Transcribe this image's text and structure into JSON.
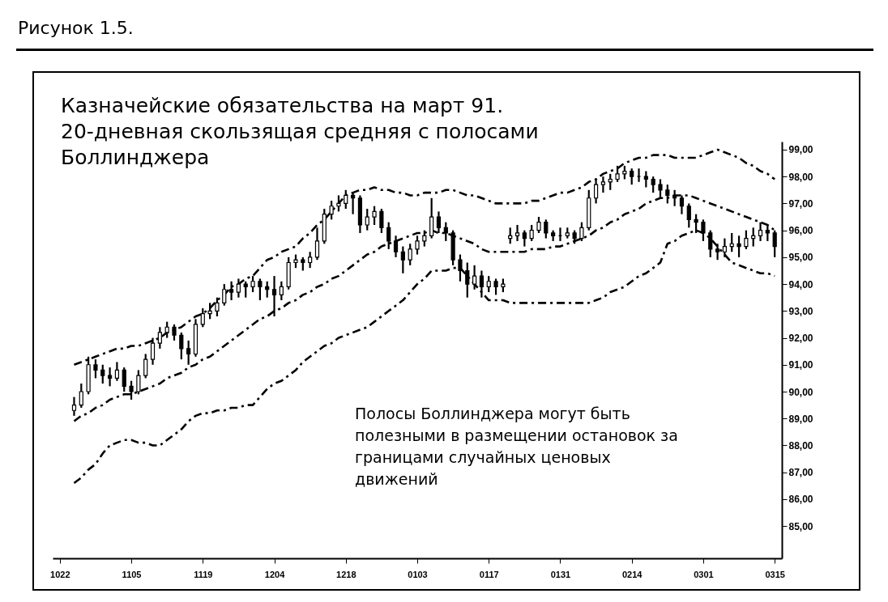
{
  "chart_data": {
    "type": "candlestick",
    "title": "Казначейские обязательства на март 91.\n20-дневная скользящая средняя с полосами\nБоллинджера",
    "annotations": [
      "Рисунок 1.5.",
      "Полосы Боллинджера могут быть\nполезными в размещении остановок за\nграницами случайных ценовых\nдвижений"
    ],
    "color": "#000000",
    "categories": [
      "1022",
      null,
      null,
      null,
      null,
      null,
      null,
      null,
      null,
      null,
      "1105",
      null,
      null,
      null,
      null,
      null,
      null,
      null,
      null,
      null,
      "1119",
      null,
      null,
      null,
      null,
      null,
      null,
      null,
      null,
      null,
      "1204",
      null,
      null,
      null,
      null,
      null,
      null,
      null,
      null,
      null,
      "1218",
      null,
      null,
      null,
      null,
      null,
      null,
      null,
      null,
      null,
      "0103",
      null,
      null,
      null,
      null,
      null,
      null,
      null,
      null,
      null,
      "0117",
      null,
      null,
      null,
      null,
      null,
      null,
      null,
      null,
      null,
      "0131",
      null,
      null,
      null,
      null,
      null,
      null,
      null,
      null,
      null,
      "0214",
      null,
      null,
      null,
      null,
      null,
      null,
      null,
      null,
      null,
      "0301",
      null,
      null,
      null,
      null,
      null,
      null,
      null,
      null,
      null,
      "0315"
    ],
    "ohlc": [
      null,
      null,
      [
        89.3,
        89.8,
        89.1,
        89.5
      ],
      [
        89.5,
        90.3,
        89.4,
        90.0
      ],
      [
        90.0,
        91.3,
        89.9,
        91.0
      ],
      [
        91.0,
        91.2,
        90.5,
        90.8
      ],
      [
        90.8,
        91.0,
        90.3,
        90.6
      ],
      [
        90.6,
        90.9,
        90.2,
        90.5
      ],
      [
        90.5,
        91.1,
        90.4,
        90.8
      ],
      [
        90.8,
        90.9,
        90.0,
        90.2
      ],
      [
        90.2,
        90.4,
        89.7,
        90.0
      ],
      [
        90.0,
        90.8,
        89.9,
        90.6
      ],
      [
        90.6,
        91.4,
        90.5,
        91.2
      ],
      [
        91.2,
        92.0,
        91.0,
        91.8
      ],
      [
        91.8,
        92.4,
        91.6,
        92.2
      ],
      [
        92.2,
        92.6,
        92.0,
        92.4
      ],
      [
        92.4,
        92.5,
        91.9,
        92.1
      ],
      [
        92.1,
        92.2,
        91.2,
        91.6
      ],
      [
        91.6,
        91.9,
        91.0,
        91.4
      ],
      [
        91.4,
        92.7,
        91.3,
        92.5
      ],
      [
        92.5,
        93.1,
        92.4,
        92.9
      ],
      [
        92.9,
        93.3,
        92.7,
        93.0
      ],
      [
        93.0,
        93.5,
        92.8,
        93.3
      ],
      [
        93.3,
        94.0,
        93.2,
        93.8
      ],
      [
        93.8,
        94.1,
        93.4,
        93.7
      ],
      [
        93.7,
        94.2,
        93.5,
        94.0
      ],
      [
        94.0,
        94.1,
        93.5,
        93.9
      ],
      [
        93.9,
        94.3,
        93.7,
        94.1
      ],
      [
        94.1,
        94.2,
        93.4,
        93.9
      ],
      [
        93.9,
        94.1,
        93.5,
        93.8
      ],
      [
        93.8,
        94.3,
        92.8,
        93.6
      ],
      [
        93.6,
        94.1,
        93.4,
        93.9
      ],
      [
        93.9,
        95.0,
        93.8,
        94.8
      ],
      [
        94.8,
        95.1,
        94.6,
        94.9
      ],
      [
        94.9,
        95.0,
        94.5,
        94.8
      ],
      [
        94.8,
        95.2,
        94.6,
        95.0
      ],
      [
        95.0,
        96.1,
        94.9,
        95.6
      ],
      [
        95.6,
        96.8,
        95.5,
        96.6
      ],
      [
        96.6,
        97.1,
        96.4,
        96.9
      ],
      [
        96.9,
        97.3,
        96.7,
        97.0
      ],
      [
        97.0,
        97.5,
        96.8,
        97.3
      ],
      [
        97.3,
        97.4,
        96.6,
        97.2
      ],
      [
        97.2,
        97.3,
        95.9,
        96.2
      ],
      [
        96.2,
        96.8,
        96.0,
        96.5
      ],
      [
        96.5,
        96.9,
        96.2,
        96.7
      ],
      [
        96.7,
        96.8,
        95.9,
        96.1
      ],
      [
        96.1,
        96.3,
        95.3,
        95.6
      ],
      [
        95.6,
        95.8,
        95.0,
        95.2
      ],
      [
        95.2,
        95.4,
        94.4,
        94.9
      ],
      [
        94.9,
        95.5,
        94.7,
        95.3
      ],
      [
        95.3,
        95.8,
        95.1,
        95.6
      ],
      [
        95.6,
        96.0,
        95.4,
        95.8
      ],
      [
        95.8,
        97.2,
        95.7,
        96.5
      ],
      [
        96.5,
        96.7,
        95.9,
        96.1
      ],
      [
        96.1,
        96.3,
        95.6,
        95.9
      ],
      [
        95.9,
        96.0,
        94.7,
        94.9
      ],
      [
        94.9,
        95.1,
        94.1,
        94.5
      ],
      [
        94.5,
        94.8,
        93.5,
        94.0
      ],
      [
        94.0,
        94.7,
        93.8,
        94.3
      ],
      [
        94.3,
        94.5,
        93.5,
        93.9
      ],
      [
        93.9,
        94.3,
        93.7,
        94.1
      ],
      [
        94.1,
        94.2,
        93.6,
        93.9
      ],
      [
        93.9,
        94.2,
        93.7,
        94.0
      ],
      [
        95.7,
        96.1,
        95.5,
        95.8
      ],
      [
        95.8,
        96.2,
        95.6,
        95.9
      ],
      [
        95.9,
        96.0,
        95.4,
        95.7
      ],
      [
        95.7,
        96.2,
        95.6,
        96.0
      ],
      [
        96.0,
        96.5,
        95.9,
        96.3
      ],
      [
        96.3,
        96.4,
        95.7,
        95.9
      ],
      [
        95.9,
        96.0,
        95.6,
        95.8
      ],
      [
        95.8,
        96.1,
        95.6,
        95.8
      ],
      [
        95.8,
        96.1,
        95.7,
        95.9
      ],
      [
        95.9,
        96.0,
        95.5,
        95.7
      ],
      [
        95.7,
        96.3,
        95.6,
        96.1
      ],
      [
        96.1,
        97.5,
        96.0,
        97.2
      ],
      [
        97.2,
        97.9,
        97.0,
        97.7
      ],
      [
        97.7,
        98.0,
        97.4,
        97.8
      ],
      [
        97.8,
        98.1,
        97.5,
        97.9
      ],
      [
        97.9,
        98.4,
        97.8,
        98.1
      ],
      [
        98.1,
        98.4,
        97.9,
        98.2
      ],
      [
        98.2,
        98.3,
        97.7,
        98.0
      ],
      [
        98.0,
        98.3,
        97.8,
        98.0
      ],
      [
        98.0,
        98.2,
        97.6,
        97.9
      ],
      [
        97.9,
        98.0,
        97.4,
        97.7
      ],
      [
        97.7,
        97.9,
        97.2,
        97.5
      ],
      [
        97.5,
        97.7,
        97.0,
        97.3
      ],
      [
        97.3,
        97.5,
        96.9,
        97.2
      ],
      [
        97.2,
        97.3,
        96.6,
        96.9
      ],
      [
        96.9,
        97.0,
        96.1,
        96.4
      ],
      [
        96.4,
        96.6,
        95.9,
        96.3
      ],
      [
        96.3,
        96.4,
        95.6,
        95.9
      ],
      [
        95.9,
        96.0,
        95.0,
        95.3
      ],
      [
        95.3,
        95.5,
        94.9,
        95.2
      ],
      [
        95.2,
        95.7,
        95.0,
        95.4
      ],
      [
        95.4,
        95.9,
        95.2,
        95.5
      ],
      [
        95.5,
        95.8,
        95.0,
        95.4
      ],
      [
        95.4,
        96.0,
        95.3,
        95.7
      ],
      [
        95.7,
        96.1,
        95.4,
        95.8
      ],
      [
        95.8,
        96.3,
        95.6,
        96.0
      ],
      [
        96.0,
        96.2,
        95.6,
        95.9
      ],
      [
        95.9,
        96.0,
        95.0,
        95.4
      ]
    ],
    "series": [
      {
        "type": "line",
        "color": "#000000",
        "line_style": "dashed",
        "values": [
          null,
          null,
          91.0,
          91.1,
          91.2,
          91.3,
          91.4,
          91.5,
          91.6,
          91.6,
          91.7,
          91.7,
          91.8,
          91.9,
          92.0,
          92.2,
          92.3,
          92.4,
          92.6,
          92.8,
          92.9,
          93.1,
          93.4,
          93.6,
          93.9,
          94.0,
          94.2,
          94.3,
          94.6,
          94.9,
          95.0,
          95.2,
          95.3,
          95.4,
          95.7,
          95.9,
          96.2,
          96.4,
          96.7,
          97.0,
          97.3,
          97.4,
          97.5,
          97.5,
          97.6,
          97.5,
          97.5,
          97.4,
          97.4,
          97.3,
          97.3,
          97.4,
          97.4,
          97.4,
          97.5,
          97.5,
          97.4,
          97.3,
          97.3,
          97.2,
          97.1,
          97.0,
          97.0,
          97.0,
          97.0,
          97.0,
          97.1,
          97.1,
          97.2,
          97.3,
          97.4,
          97.4,
          97.5,
          97.6,
          97.8,
          97.9,
          98.1,
          98.2,
          98.3,
          98.5,
          98.6,
          98.7,
          98.7,
          98.8,
          98.8,
          98.8,
          98.7,
          98.7,
          98.7,
          98.7,
          98.8,
          98.9,
          99.0,
          98.9,
          98.8,
          98.7,
          98.5,
          98.4,
          98.2,
          98.1,
          97.9
        ]
      },
      {
        "type": "line",
        "color": "#000000",
        "line_style": "dashed",
        "values": [
          null,
          null,
          88.9,
          89.1,
          89.2,
          89.4,
          89.5,
          89.7,
          89.8,
          89.9,
          89.9,
          90.0,
          90.1,
          90.2,
          90.3,
          90.5,
          90.6,
          90.7,
          90.9,
          91.0,
          91.2,
          91.3,
          91.5,
          91.7,
          91.9,
          92.1,
          92.3,
          92.5,
          92.7,
          92.8,
          93.0,
          93.1,
          93.3,
          93.4,
          93.6,
          93.7,
          93.9,
          94.0,
          94.2,
          94.3,
          94.5,
          94.7,
          94.9,
          95.1,
          95.2,
          95.4,
          95.5,
          95.6,
          95.7,
          95.8,
          95.9,
          95.9,
          96.0,
          95.9,
          95.9,
          95.8,
          95.7,
          95.6,
          95.5,
          95.3,
          95.2,
          95.2,
          95.2,
          95.2,
          95.2,
          95.2,
          95.3,
          95.3,
          95.3,
          95.4,
          95.4,
          95.5,
          95.6,
          95.7,
          95.8,
          96.0,
          96.1,
          96.3,
          96.4,
          96.6,
          96.7,
          96.8,
          97.0,
          97.1,
          97.2,
          97.2,
          97.3,
          97.3,
          97.3,
          97.2,
          97.1,
          97.0,
          96.9,
          96.8,
          96.7,
          96.6,
          96.5,
          96.4,
          96.3,
          96.2,
          96.0
        ]
      },
      {
        "type": "line",
        "color": "#000000",
        "line_style": "dashed",
        "values": [
          null,
          null,
          86.6,
          86.8,
          87.1,
          87.3,
          87.7,
          88.0,
          88.1,
          88.2,
          88.2,
          88.1,
          88.1,
          88.0,
          88.0,
          88.2,
          88.4,
          88.6,
          88.9,
          89.1,
          89.2,
          89.2,
          89.3,
          89.3,
          89.4,
          89.4,
          89.5,
          89.5,
          89.8,
          90.1,
          90.3,
          90.4,
          90.6,
          90.8,
          91.1,
          91.3,
          91.5,
          91.7,
          91.8,
          92.0,
          92.1,
          92.2,
          92.3,
          92.4,
          92.6,
          92.8,
          93.0,
          93.2,
          93.4,
          93.7,
          94.0,
          94.2,
          94.5,
          94.5,
          94.5,
          94.6,
          94.6,
          94.3,
          94.0,
          93.7,
          93.4,
          93.4,
          93.4,
          93.3,
          93.3,
          93.3,
          93.3,
          93.3,
          93.3,
          93.3,
          93.3,
          93.3,
          93.3,
          93.3,
          93.3,
          93.4,
          93.5,
          93.7,
          93.8,
          93.9,
          94.1,
          94.3,
          94.4,
          94.6,
          94.8,
          95.5,
          95.6,
          95.8,
          95.9,
          96.0,
          95.9,
          95.7,
          95.4,
          95.1,
          94.8,
          94.7,
          94.6,
          94.5,
          94.4,
          94.4,
          94.3
        ]
      }
    ],
    "ylim": [
      83.8,
      99.3
    ],
    "yticks": [
      {
        "value": 99,
        "label": "99,00"
      },
      {
        "value": 98,
        "label": "98,00"
      },
      {
        "value": 97,
        "label": "97,00"
      },
      {
        "value": 96,
        "label": "96,00"
      },
      {
        "value": 95,
        "label": "95,00"
      },
      {
        "value": 94,
        "label": "94,00"
      },
      {
        "value": 93,
        "label": "93,00"
      },
      {
        "value": 92,
        "label": "92,00"
      },
      {
        "value": 91,
        "label": "91,00"
      },
      {
        "value": 90,
        "label": "90,00"
      },
      {
        "value": 89,
        "label": "89,00"
      },
      {
        "value": 88,
        "label": "88,00"
      },
      {
        "value": 87,
        "label": "87,00"
      },
      {
        "value": 86,
        "label": "86,00"
      },
      {
        "value": 85,
        "label": "85,00"
      }
    ],
    "grid": false
  }
}
